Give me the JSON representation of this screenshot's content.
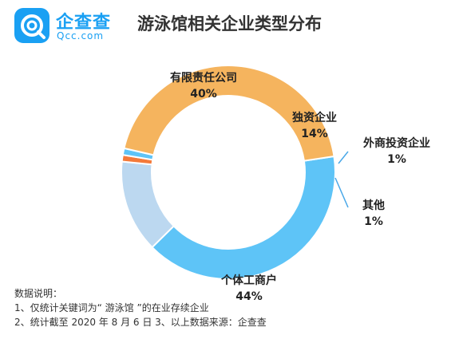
{
  "logo": {
    "name": "企查查",
    "domain": "Qcc.com",
    "icon": "qcc-logo-icon",
    "color": "#1aa0f3"
  },
  "chart_data": {
    "type": "pie",
    "subtype": "donut",
    "title": "游泳馆相关企业类型分布",
    "slices": [
      {
        "label": "有限责任公司",
        "value": 40,
        "display": "40%",
        "color": "#5ec4f7"
      },
      {
        "label": "独资企业",
        "value": 14,
        "display": "14%",
        "color": "#bcd8f0"
      },
      {
        "label": "外商投资企业",
        "value": 1,
        "display": "1%",
        "color": "#f47a3a"
      },
      {
        "label": "其他",
        "value": 1,
        "display": "1%",
        "color": "#5ec4f7"
      },
      {
        "label": "个体工商户",
        "value": 44,
        "display": "44%",
        "color": "#f5b45e"
      }
    ]
  },
  "notes": {
    "heading": "数据说明：",
    "line1": "1、仅统计关键词为“ 游泳馆 ”的在业存续企业",
    "line2": "2、统计截至 2020 年 8 月 6 日 3、以上数据来源：企查查"
  }
}
